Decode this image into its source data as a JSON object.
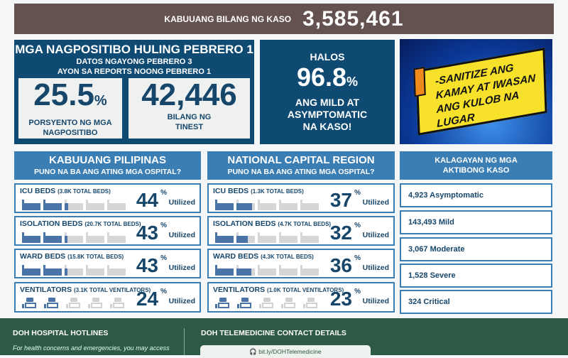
{
  "total": {
    "label": "KABUUANG BILANG NG KASO",
    "value": "3,585,461"
  },
  "positivity": {
    "title": "MGA NAGPOSITIBO HULING PEBRERO 1",
    "sub1": "DATOS NGAYONG PEBRERO 3",
    "sub2": "AYON SA REPORTS NOONG PEBRERO 1",
    "rate": "25.5",
    "rate_unit": "%",
    "rate_caption1": "PORSYENTO NG MGA",
    "rate_caption2": "NAGPOSITIBO",
    "tested": "42,446",
    "tested_caption1": "BILANG NG",
    "tested_caption2": "TINEST"
  },
  "mild": {
    "pre": "HALOS",
    "value": "96.8",
    "unit": "%",
    "c1": "ANG MILD AT",
    "c2": "ASYMPTOMATIC",
    "c3": "NA KASO!"
  },
  "poster": {
    "l1": "-SANITIZE ANG",
    "l2": "KAMAY AT IWASAN",
    "l3": "ANG KULOB NA LUGAR"
  },
  "utilized_label": "Utilized",
  "pct_sign": "%",
  "colors": {
    "navy": "#0e4a72",
    "header_blue": "#3b7eb4",
    "filled": "#4a74a8",
    "empty": "#d4d6d8",
    "footer_green": "#2e5a45",
    "topbar": "#645250"
  },
  "regions": [
    {
      "title": "KABUUANG PILIPINAS",
      "subtitle": "PUNO NA BA ANG ATING MGA OSPITAL?",
      "rows": [
        {
          "name": "ICU BEDS",
          "total": "(3.8K TOTAL BEDS)",
          "pct": 44,
          "type": "bed"
        },
        {
          "name": "ISOLATION BEDS",
          "total": "(20.7K TOTAL BEDS)",
          "pct": 43,
          "type": "bed"
        },
        {
          "name": "WARD BEDS",
          "total": "(15.8K TOTAL BEDS)",
          "pct": 43,
          "type": "bed"
        },
        {
          "name": "VENTILATORS",
          "total": "(3.1K TOTAL VENTILATORS)",
          "pct": 24,
          "type": "vent"
        }
      ]
    },
    {
      "title": "NATIONAL CAPITAL REGION",
      "subtitle": "PUNO NA BA ANG ATING MGA OSPITAL?",
      "rows": [
        {
          "name": "ICU BEDS",
          "total": "(1.3K TOTAL BEDS)",
          "pct": 37,
          "type": "bed"
        },
        {
          "name": "ISOLATION BEDS",
          "total": "(4.7K TOTAL BEDS)",
          "pct": 32,
          "type": "bed"
        },
        {
          "name": "WARD BEDS",
          "total": "(4.3K TOTAL BEDS)",
          "pct": 36,
          "type": "bed"
        },
        {
          "name": "VENTILATORS",
          "total": "(1.0K TOTAL VENTILATORS)",
          "pct": 23,
          "type": "vent"
        }
      ]
    }
  ],
  "active": {
    "title1": "KALAGAYAN NG MGA",
    "title2": "AKTIBONG KASO",
    "items": [
      "4,923 Asymptomatic",
      "143,493 Mild",
      "3,067 Moderate",
      "1,528 Severe",
      "324 Critical"
    ]
  },
  "footer": {
    "hotlines_title": "DOH HOSPITAL HOTLINES",
    "hotlines_text": "For health concerns and emergencies, you may access",
    "tele_title": "DOH TELEMEDICINE CONTACT DETAILS",
    "tele_link": "bit.ly/DOHTelemedicine"
  }
}
